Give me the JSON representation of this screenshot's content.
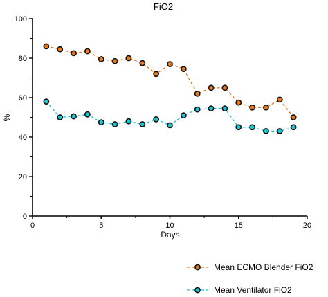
{
  "chart_data": {
    "type": "line",
    "title": "FiO2",
    "xlabel": "Days",
    "ylabel": "%",
    "xlim": [
      0,
      20
    ],
    "ylim": [
      0,
      100
    ],
    "xticks": [
      "0",
      "5",
      "10",
      "15",
      "20"
    ],
    "yticks": [
      "0",
      "20",
      "40",
      "60",
      "80",
      "100"
    ],
    "grid": false,
    "legend_position": "bottom-right",
    "x": [
      1,
      2,
      3,
      4,
      5,
      6,
      7,
      8,
      9,
      10,
      11,
      12,
      13,
      14,
      15,
      16,
      17,
      18,
      19
    ],
    "series": [
      {
        "name": "Mean ECMO Blender FiO2",
        "color": "#e87a1e",
        "values": [
          86,
          84.5,
          82.5,
          83.5,
          79.5,
          78.5,
          80,
          77.5,
          72,
          77,
          74.5,
          62,
          65,
          65,
          57.5,
          55,
          55,
          59,
          50
        ]
      },
      {
        "name": "Mean Ventilator FiO2",
        "color": "#19c7d6",
        "values": [
          58,
          50,
          50.5,
          51.5,
          47.5,
          46.5,
          48,
          46.5,
          49,
          46,
          51,
          54,
          54.5,
          54.5,
          45,
          45,
          43,
          43,
          45
        ]
      }
    ]
  }
}
